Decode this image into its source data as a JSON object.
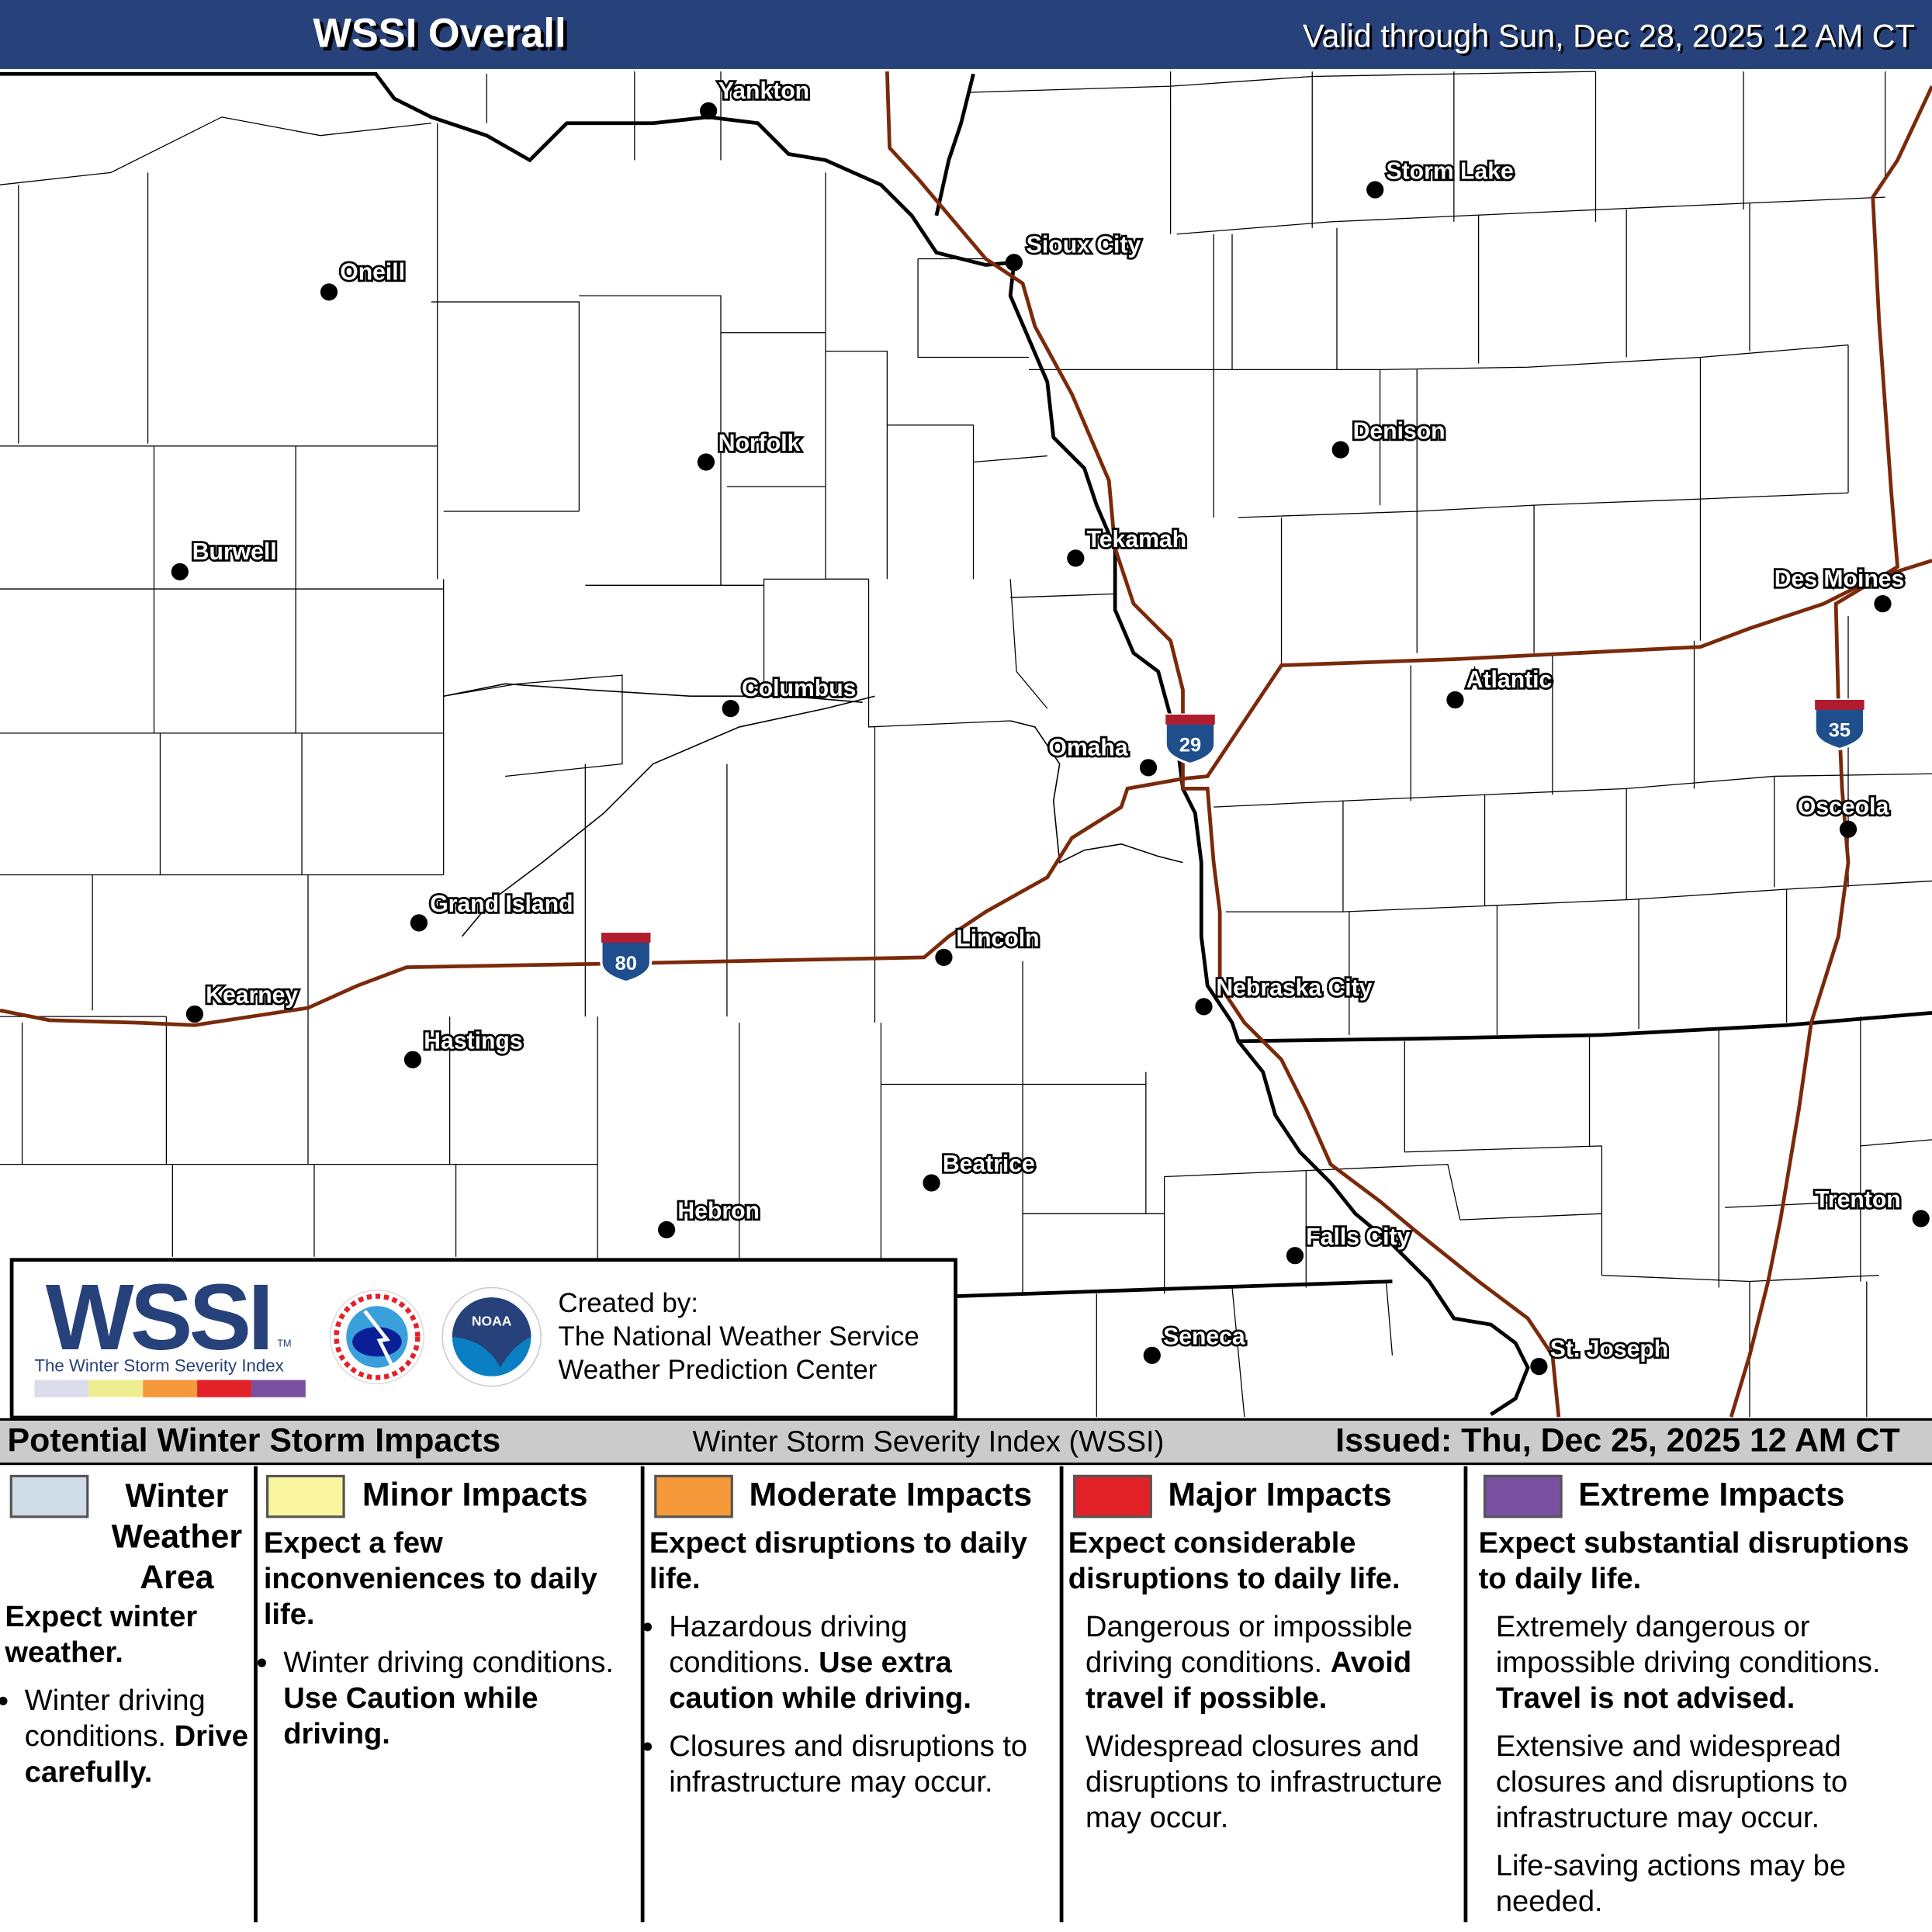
{
  "header": {
    "title": "WSSI Overall",
    "valid": "Valid through Sun, Dec 28, 2025 12 AM CT"
  },
  "map": {
    "cities": [
      {
        "name": "Yankton",
        "dot": [
          575,
          90
        ],
        "label": [
          583,
          73
        ]
      },
      {
        "name": "Storm Lake",
        "dot": [
          1116,
          154
        ],
        "label": [
          1125,
          138
        ]
      },
      {
        "name": "Sioux City",
        "dot": [
          823,
          213
        ],
        "label": [
          833,
          198
        ]
      },
      {
        "name": "Oneill",
        "dot": [
          267,
          237
        ],
        "label": [
          276,
          220
        ]
      },
      {
        "name": "Norfolk",
        "dot": [
          573,
          375
        ],
        "label": [
          583,
          359
        ]
      },
      {
        "name": "Denison",
        "dot": [
          1088,
          365
        ],
        "label": [
          1098,
          349
        ]
      },
      {
        "name": "Burwell",
        "dot": [
          146,
          464
        ],
        "label": [
          156,
          447
        ]
      },
      {
        "name": "Tekamah",
        "dot": [
          873,
          453
        ],
        "label": [
          882,
          437
        ]
      },
      {
        "name": "Des Moines",
        "dot": [
          1528,
          490
        ],
        "label": [
          1440,
          469
        ]
      },
      {
        "name": "Columbus",
        "dot": [
          593,
          575
        ],
        "label": [
          602,
          558
        ]
      },
      {
        "name": "Atlantic",
        "dot": [
          1181,
          568
        ],
        "label": [
          1190,
          551
        ]
      },
      {
        "name": "Omaha",
        "dot": [
          932,
          623
        ],
        "label": [
          851,
          606
        ]
      },
      {
        "name": "Osceola",
        "dot": [
          1500,
          673
        ],
        "label": [
          1459,
          654
        ]
      },
      {
        "name": "Grand Island",
        "dot": [
          340,
          749
        ],
        "label": [
          349,
          733
        ]
      },
      {
        "name": "Lincoln",
        "dot": [
          766,
          777
        ],
        "label": [
          776,
          761
        ]
      },
      {
        "name": "Kearney",
        "dot": [
          158,
          823
        ],
        "label": [
          167,
          807
        ]
      },
      {
        "name": "Nebraska City",
        "dot": [
          977,
          817
        ],
        "label": [
          987,
          801
        ]
      },
      {
        "name": "Hastings",
        "dot": [
          335,
          860
        ],
        "label": [
          344,
          844
        ]
      },
      {
        "name": "Beatrice",
        "dot": [
          756,
          960
        ],
        "label": [
          765,
          944
        ]
      },
      {
        "name": "Trenton",
        "dot": [
          1559,
          989
        ],
        "label": [
          1473,
          973
        ]
      },
      {
        "name": "Hebron",
        "dot": [
          541,
          998
        ],
        "label": [
          550,
          982
        ]
      },
      {
        "name": "Falls City",
        "dot": [
          1051,
          1019
        ],
        "label": [
          1060,
          1003
        ]
      },
      {
        "name": "Seneca",
        "dot": [
          935,
          1100
        ],
        "label": [
          944,
          1084
        ]
      },
      {
        "name": "St. Joseph",
        "dot": [
          1249,
          1109
        ],
        "label": [
          1258,
          1094
        ]
      }
    ],
    "interstates": [
      "80",
      "29",
      "35"
    ],
    "colors": {
      "interstate": "#7a2a0a",
      "shield_blue": "#1f4e8c",
      "shield_red": "#b01c2e"
    }
  },
  "logo": {
    "wssi": "WSSI",
    "tm": "TM",
    "subtitle": "The Winter Storm Severity Index",
    "colors": [
      "#dcdcec",
      "#eeee90",
      "#f5993a",
      "#e32129",
      "#7a51a1"
    ],
    "credit": [
      "Created by:",
      "The National Weather Service",
      "Weather Prediction Center"
    ]
  },
  "legend_bar": {
    "title": "Potential Winter Storm Impacts",
    "index": "Winter Storm Severity Index (WSSI)",
    "issued": "Issued: Thu, Dec 25, 2025 12 AM CT"
  },
  "legend": [
    {
      "label": "Winter Weather Area",
      "color": "#d1dde6",
      "headline": "Expect winter weather.",
      "bullets": [
        {
          "text": "Winter driving conditions.",
          "bold": "Drive carefully."
        }
      ]
    },
    {
      "label": "Minor Impacts",
      "color": "#f8f59e",
      "headline": "Expect a few inconveniences to daily life.",
      "bullets": [
        {
          "text": "Winter driving conditions.",
          "bold": "Use Caution while driving."
        }
      ]
    },
    {
      "label": "Moderate Impacts",
      "color": "#f5993a",
      "headline": "Expect disruptions to daily life.",
      "bullets": [
        {
          "text": "Hazardous driving conditions.",
          "bold": "Use extra caution while driving."
        },
        {
          "text": "Closures and disruptions to infrastructure may occur.",
          "bold": ""
        }
      ]
    },
    {
      "label": "Major Impacts",
      "color": "#e32129",
      "headline": "Expect considerable disruptions to daily life.",
      "paras": [
        {
          "text": "Dangerous or impossible driving conditions.",
          "bold": "Avoid travel if possible."
        },
        {
          "text": "Widespread closures and disruptions to infrastructure may occur.",
          "bold": ""
        }
      ]
    },
    {
      "label": "Extreme Impacts",
      "color": "#7a51a1",
      "headline": "Expect substantial disruptions to daily life.",
      "paras": [
        {
          "text": "Extremely dangerous or impossible driving conditions.",
          "bold": "Travel is not advised."
        },
        {
          "text": "Extensive and widespread closures and disruptions to infrastructure may occur.",
          "bold": ""
        },
        {
          "text": "Life-saving actions may be needed.",
          "bold": ""
        }
      ]
    }
  ]
}
